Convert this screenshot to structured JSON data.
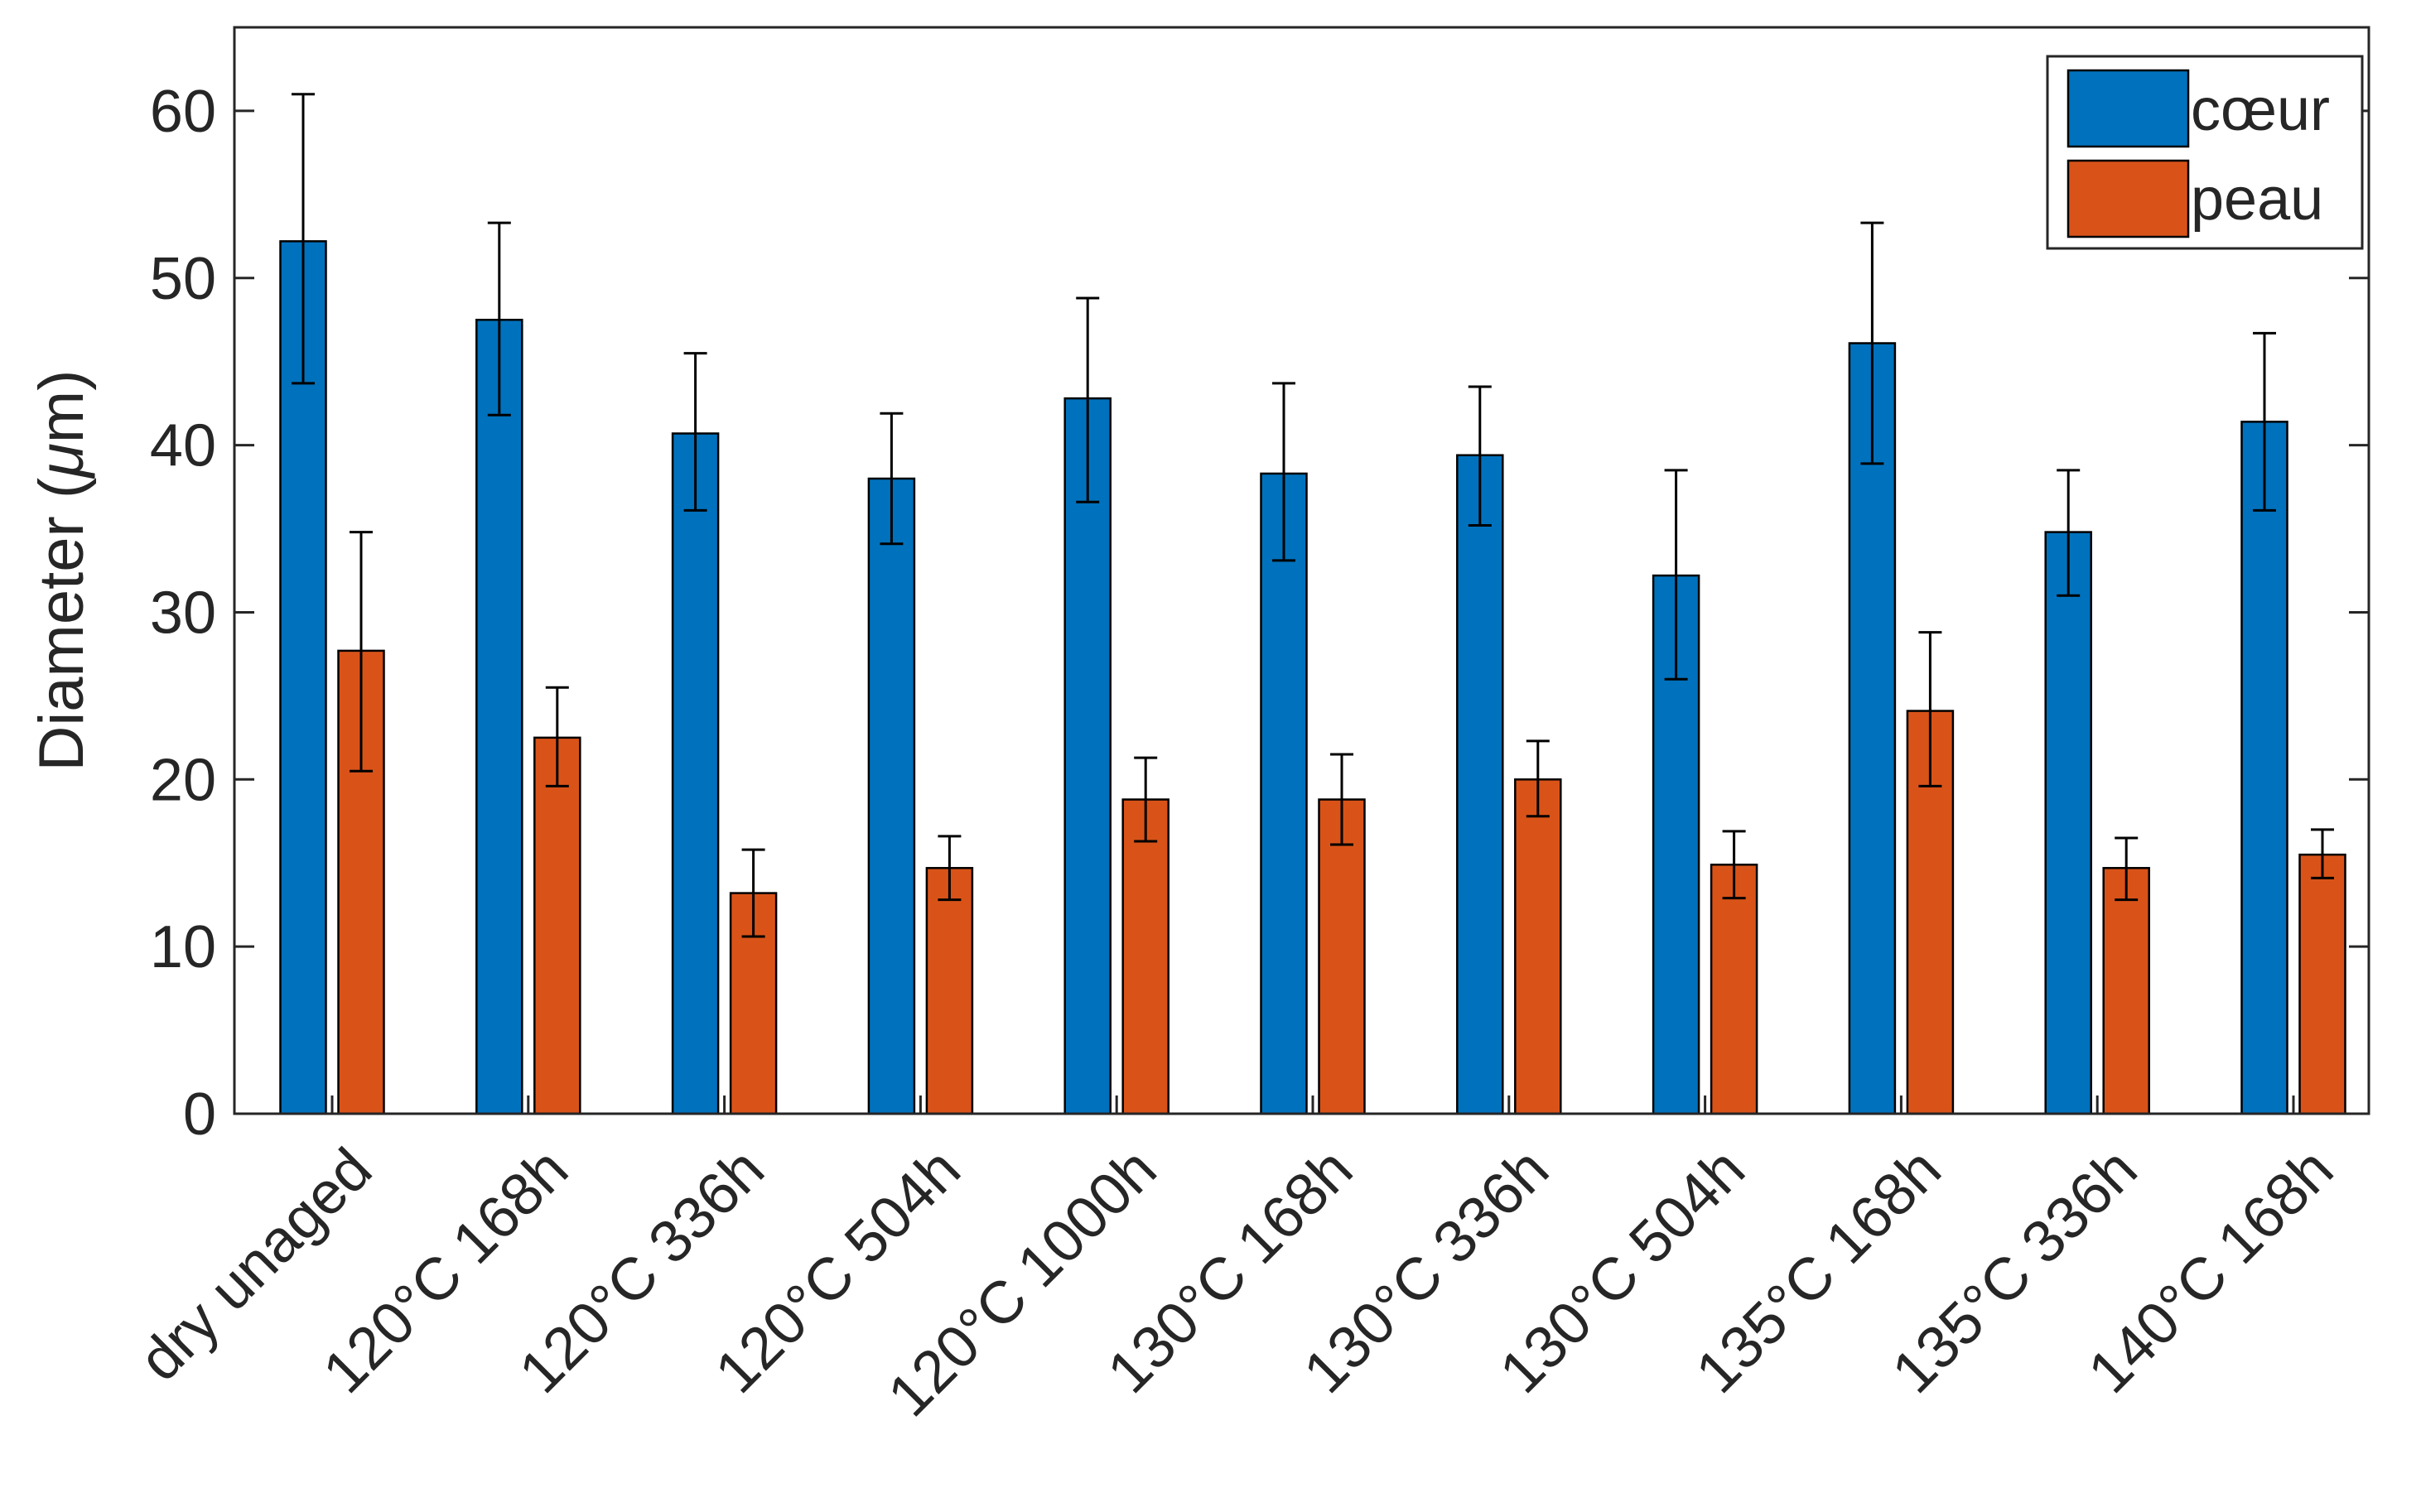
{
  "chart_data": {
    "type": "bar",
    "title": "",
    "xlabel": "",
    "ylabel": "Diameter (μm)",
    "ylabel_parts": {
      "prefix": "Diameter (",
      "mu": "μ",
      "suffix": "m)"
    },
    "ylim": [
      0,
      65
    ],
    "yticks": [
      0,
      10,
      20,
      30,
      40,
      50,
      60
    ],
    "grid": false,
    "legend_position": "top-right",
    "categories": [
      "dry unaged",
      "120°C 168h",
      "120°C 336h",
      "120°C 504h",
      "120°C 1000h",
      "130°C 168h",
      "130°C 336h",
      "130°C 504h",
      "135°C 168h",
      "135°C 336h",
      "140°C 168h"
    ],
    "series": [
      {
        "name": "cœur",
        "color": "#0072BD",
        "values": [
          52.2,
          47.5,
          40.7,
          38.0,
          42.8,
          38.3,
          39.4,
          32.2,
          46.1,
          34.8,
          41.4
        ],
        "error_low": [
          43.7,
          41.8,
          36.1,
          34.1,
          36.6,
          33.1,
          35.2,
          26.0,
          38.9,
          31.0,
          36.1
        ],
        "error_high": [
          61.0,
          53.3,
          45.5,
          41.9,
          48.8,
          43.7,
          43.5,
          38.5,
          53.3,
          38.5,
          46.7
        ]
      },
      {
        "name": "peau",
        "color": "#D95319",
        "values": [
          27.7,
          22.5,
          13.2,
          14.7,
          18.8,
          18.8,
          20.0,
          14.9,
          24.1,
          14.7,
          15.5
        ],
        "error_low": [
          20.5,
          19.6,
          10.6,
          12.8,
          16.3,
          16.1,
          17.8,
          12.9,
          19.6,
          12.8,
          14.1
        ],
        "error_high": [
          34.8,
          25.5,
          15.8,
          16.6,
          21.3,
          21.5,
          22.3,
          16.9,
          28.8,
          16.5,
          17.0
        ]
      }
    ]
  }
}
